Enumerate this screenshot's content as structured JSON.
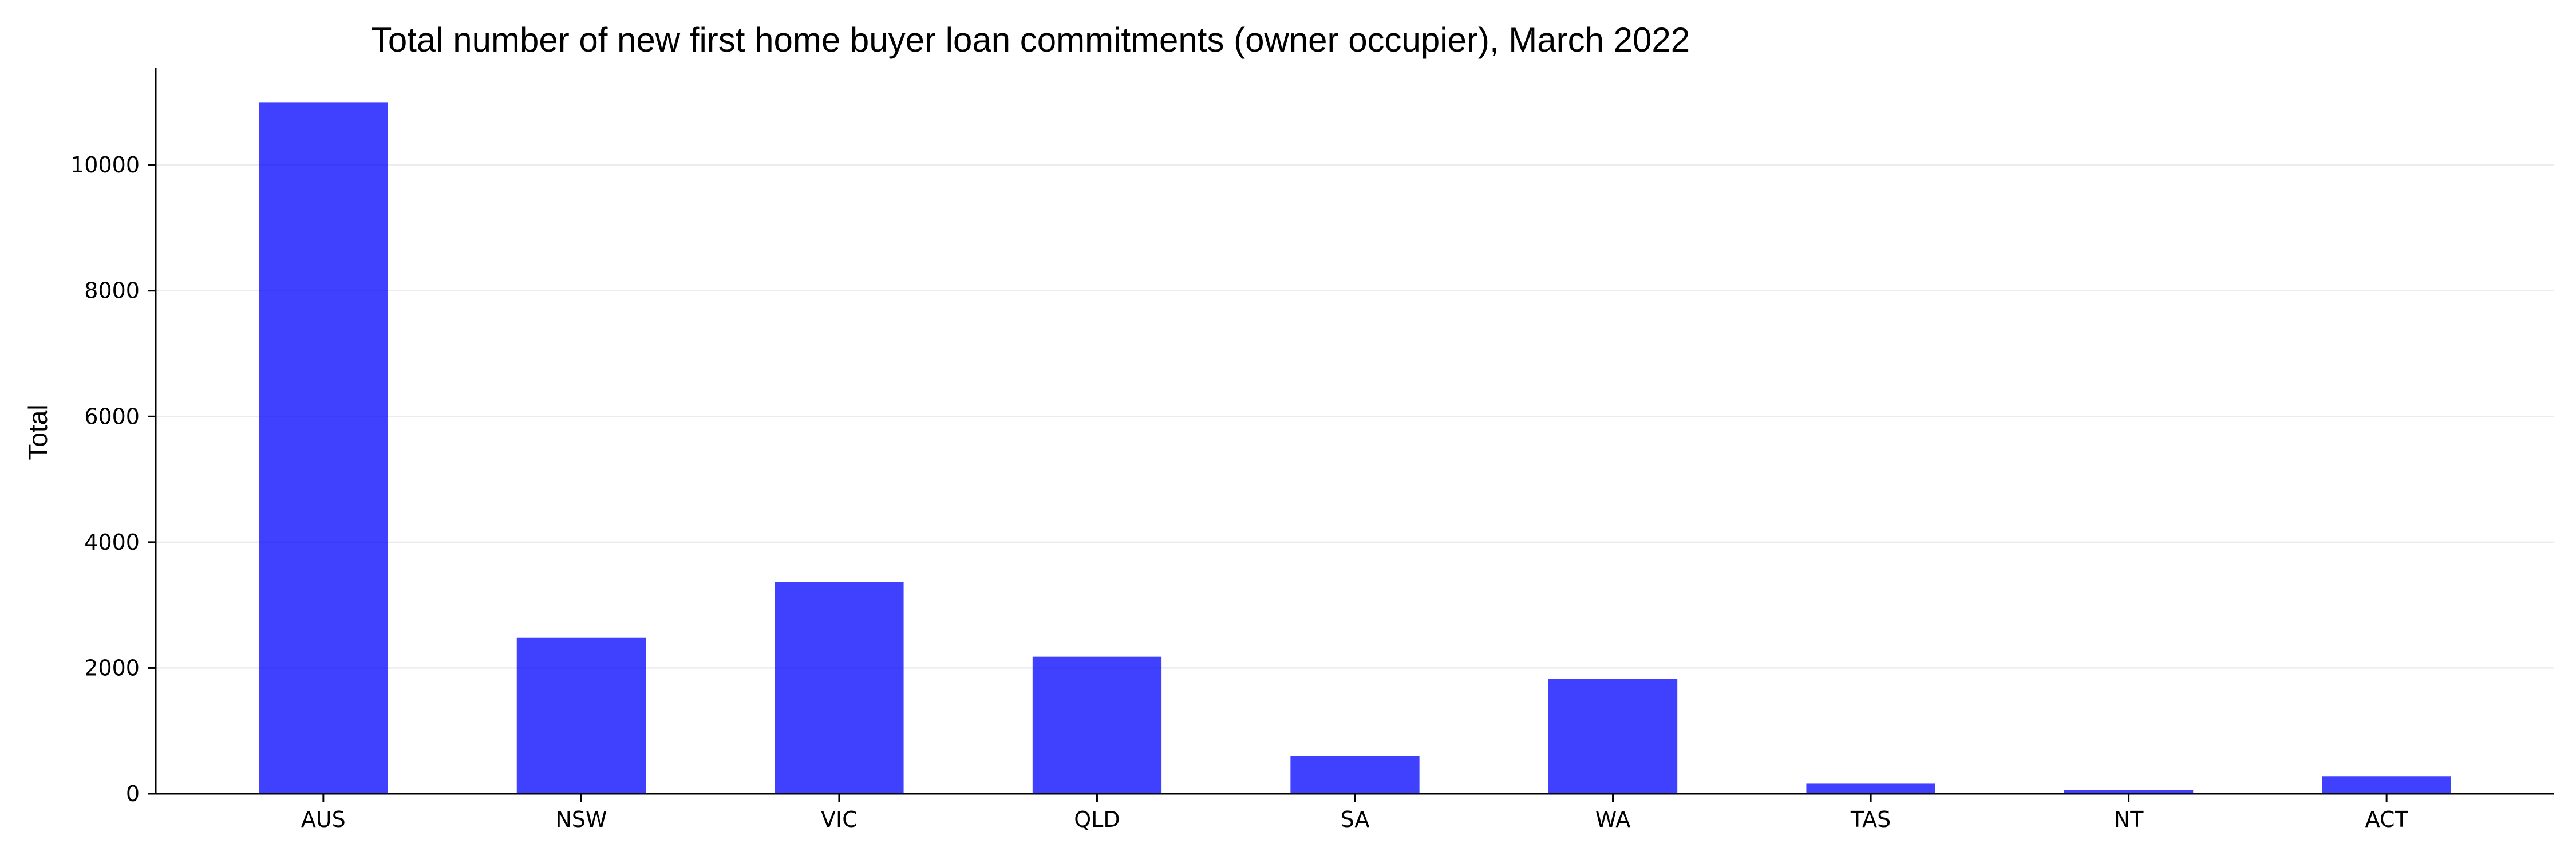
{
  "chart_data": {
    "type": "bar",
    "title": "Total number of new first home buyer loan commitments (owner occupier), March 2022",
    "xlabel": "",
    "ylabel": "Total",
    "categories": [
      "AUS",
      "NSW",
      "VIC",
      "QLD",
      "SA",
      "WA",
      "TAS",
      "NT",
      "ACT"
    ],
    "series": [
      {
        "values": [
          11000,
          2480,
          3370,
          2180,
          600,
          1830,
          160,
          60,
          280
        ]
      }
    ],
    "ylim": [
      0,
      11550
    ],
    "yticks": [
      0,
      2000,
      4000,
      6000,
      8000,
      10000
    ],
    "grid": "horizontal",
    "legend": "none",
    "colors": {
      "bar": "#0000ff",
      "grid": "#ececec",
      "axis": "#000000"
    }
  }
}
